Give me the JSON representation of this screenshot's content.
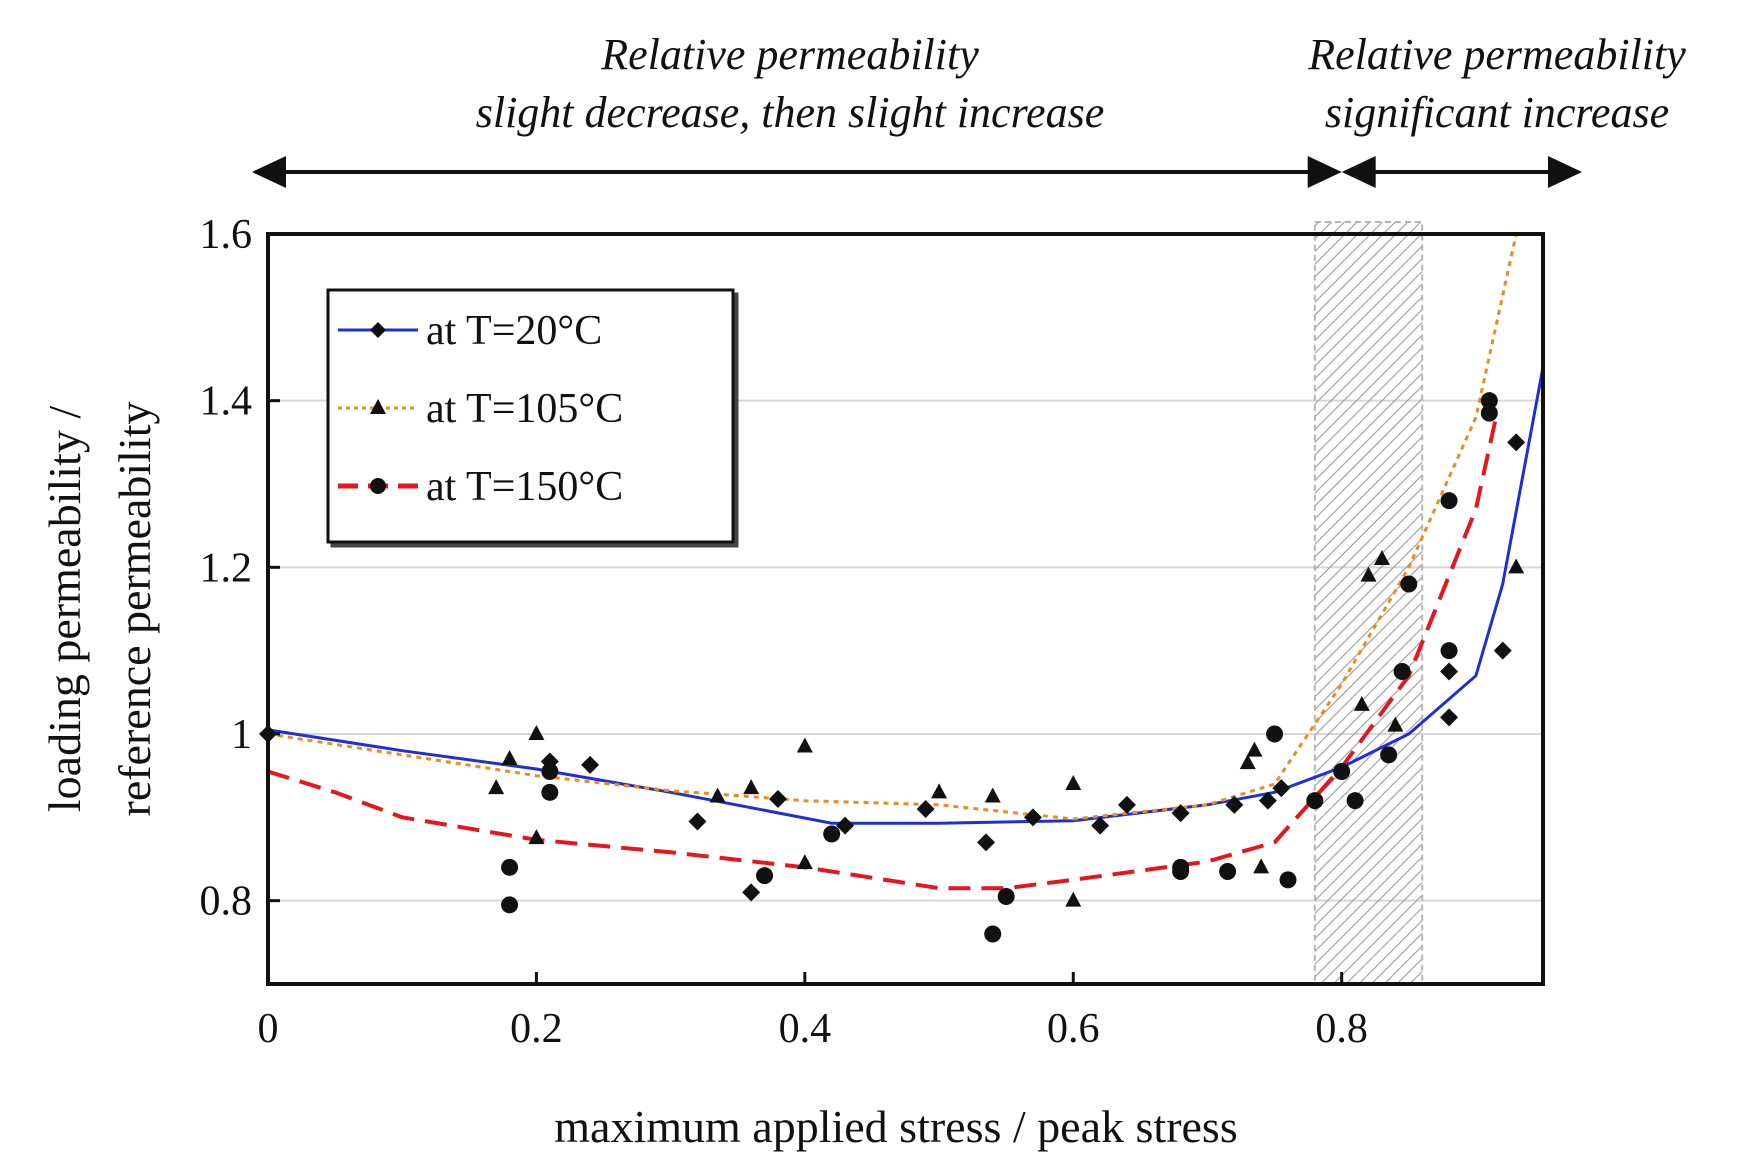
{
  "chart_data": {
    "type": "line",
    "title": "",
    "xlabel": "maximum applied stress / peak stress",
    "ylabel_line1": "loading permeability /",
    "ylabel_line2": "reference permeability",
    "xlim": [
      0,
      0.95
    ],
    "ylim": [
      0.7,
      1.6
    ],
    "xticks": [
      0,
      0.2,
      0.4,
      0.6,
      0.8
    ],
    "xtick_labels": [
      "0",
      "0.2",
      "0.4",
      "0.6",
      "0.8"
    ],
    "yticks": [
      0.8,
      1,
      1.2,
      1.4,
      1.6
    ],
    "ytick_labels": [
      "0.8",
      "1",
      "1.2",
      "1.4",
      "1.6"
    ],
    "grid": true,
    "legend_position": "top-left",
    "shaded_region": [
      0.78,
      0.86
    ],
    "annotations": [
      {
        "line1": "Relative permeability",
        "line2": "slight decrease, then slight increase",
        "range": [
          0,
          0.8
        ]
      },
      {
        "line1": "Relative permeability",
        "line2": "significant increase",
        "range": [
          0.8,
          0.95
        ]
      }
    ],
    "series": [
      {
        "name": "at T=20°C",
        "color": "#1f2fd6",
        "dash": "solid",
        "marker": "diamond",
        "curve_x": [
          0,
          0.1,
          0.2,
          0.3,
          0.42,
          0.5,
          0.6,
          0.7,
          0.75,
          0.8,
          0.85,
          0.9,
          0.92,
          0.95
        ],
        "curve_y": [
          1.005,
          0.98,
          0.958,
          0.93,
          0.893,
          0.893,
          0.896,
          0.915,
          0.93,
          0.96,
          1.0,
          1.07,
          1.18,
          1.44
        ],
        "points_x": [
          0,
          0.21,
          0.24,
          0.32,
          0.36,
          0.38,
          0.43,
          0.49,
          0.535,
          0.57,
          0.62,
          0.64,
          0.68,
          0.72,
          0.745,
          0.755,
          0.88,
          0.88,
          0.92,
          0.93
        ],
        "points_y": [
          1.0,
          0.967,
          0.963,
          0.895,
          0.81,
          0.922,
          0.89,
          0.91,
          0.87,
          0.9,
          0.89,
          0.915,
          0.905,
          0.915,
          0.92,
          0.935,
          1.02,
          1.075,
          1.1,
          1.35
        ]
      },
      {
        "name": "at T=105°C",
        "color": "#f08a18",
        "dash": "dotted",
        "marker": "triangle",
        "curve_x": [
          0,
          0.1,
          0.2,
          0.3,
          0.4,
          0.5,
          0.6,
          0.7,
          0.75,
          0.8,
          0.85,
          0.9,
          0.93
        ],
        "curve_y": [
          1.0,
          0.975,
          0.95,
          0.932,
          0.92,
          0.915,
          0.898,
          0.915,
          0.94,
          1.06,
          1.2,
          1.38,
          1.6
        ],
        "points_x": [
          0.17,
          0.18,
          0.2,
          0.2,
          0.335,
          0.36,
          0.4,
          0.4,
          0.5,
          0.54,
          0.6,
          0.6,
          0.73,
          0.735,
          0.74,
          0.815,
          0.82,
          0.83,
          0.84,
          0.93
        ],
        "points_y": [
          0.935,
          0.97,
          1.0,
          0.875,
          0.925,
          0.935,
          0.985,
          0.845,
          0.93,
          0.925,
          0.94,
          0.8,
          0.965,
          0.98,
          0.84,
          1.035,
          1.19,
          1.21,
          1.01,
          1.2
        ]
      },
      {
        "name": "at T=150°C",
        "color": "#e8141e",
        "dash": "dashed",
        "marker": "circle",
        "curve_x": [
          0,
          0.05,
          0.1,
          0.2,
          0.3,
          0.4,
          0.5,
          0.55,
          0.6,
          0.7,
          0.75,
          0.8,
          0.85,
          0.9,
          0.915
        ],
        "curve_y": [
          0.955,
          0.93,
          0.9,
          0.873,
          0.858,
          0.84,
          0.815,
          0.815,
          0.825,
          0.847,
          0.87,
          0.96,
          1.07,
          1.27,
          1.38
        ],
        "points_x": [
          0.18,
          0.18,
          0.21,
          0.21,
          0.37,
          0.42,
          0.54,
          0.55,
          0.68,
          0.68,
          0.715,
          0.75,
          0.76,
          0.78,
          0.8,
          0.81,
          0.835,
          0.845,
          0.85,
          0.88,
          0.88,
          0.91,
          0.91
        ],
        "points_y": [
          0.84,
          0.795,
          0.93,
          0.955,
          0.83,
          0.88,
          0.76,
          0.805,
          0.835,
          0.84,
          0.835,
          1.0,
          0.825,
          0.92,
          0.955,
          0.92,
          0.975,
          1.075,
          1.18,
          1.1,
          1.28,
          1.4,
          1.385
        ]
      }
    ]
  }
}
